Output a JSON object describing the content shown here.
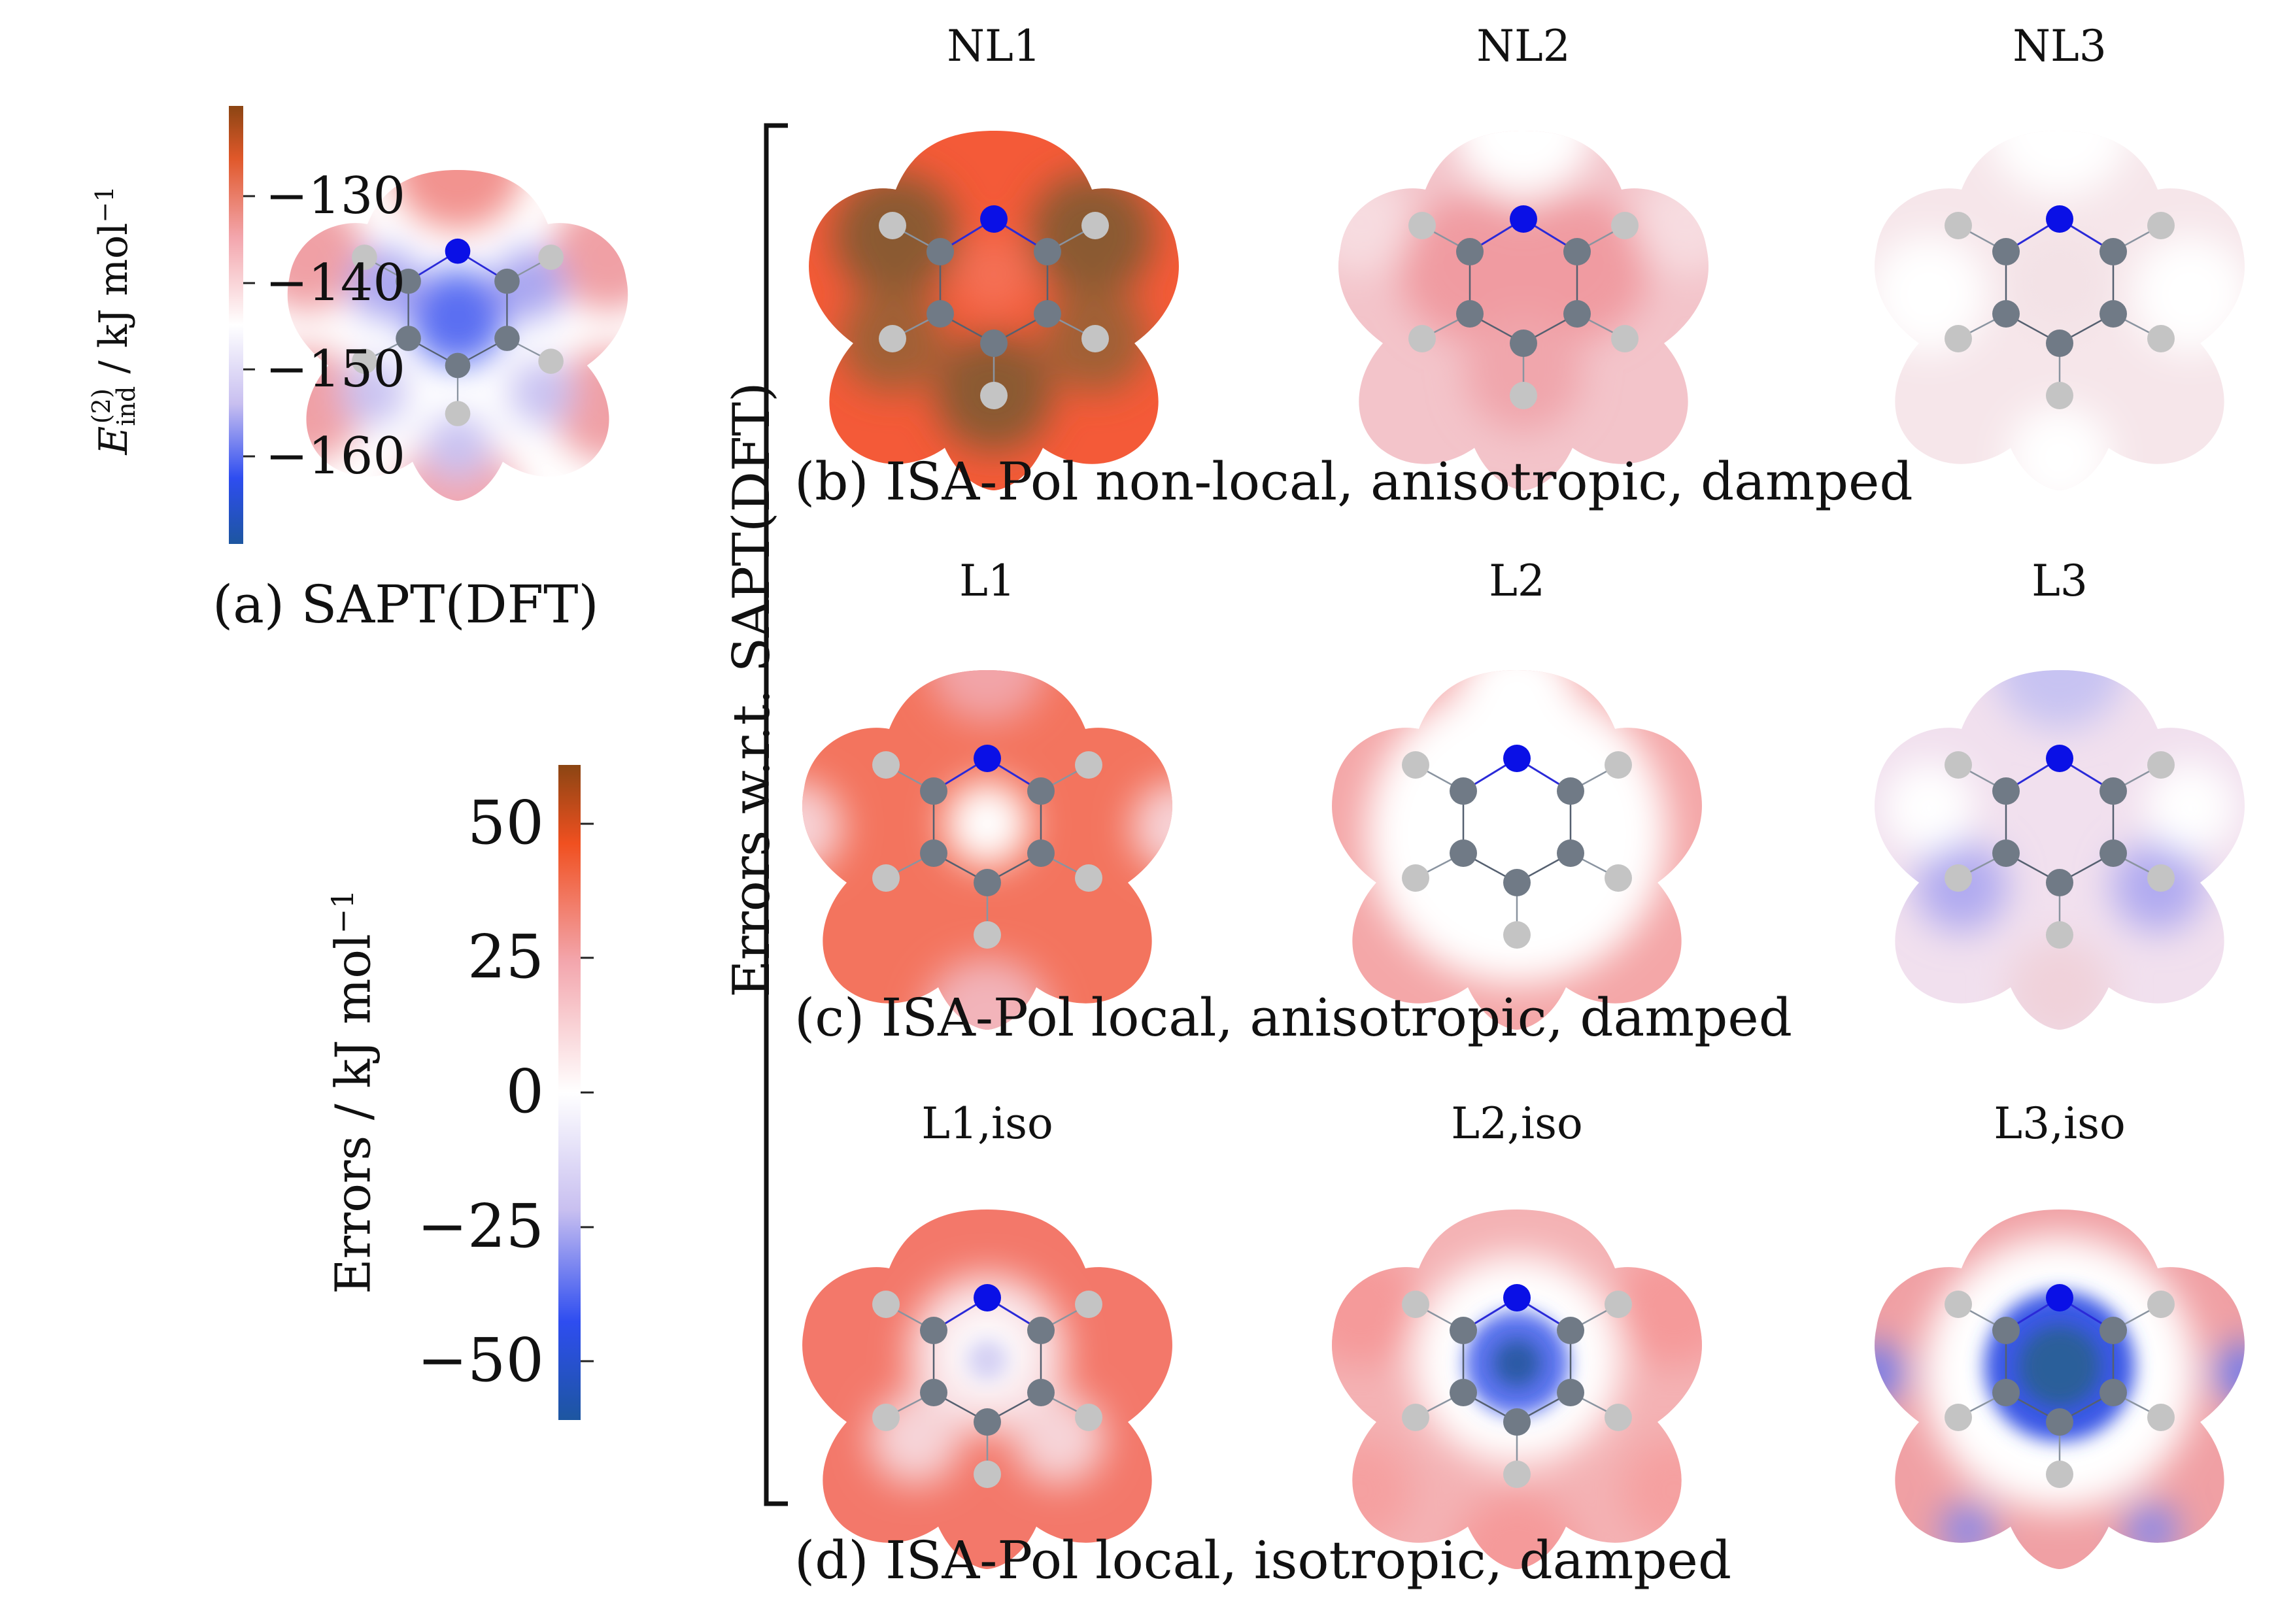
{
  "panel_a": {
    "caption": "(a) SAPT(DFT)",
    "colorbar_label_symbol": "E",
    "colorbar_label_sup": "(2)",
    "colorbar_label_sub": "ind",
    "colorbar_label_unit": " / kJ mol",
    "colorbar_label_exp": "−1",
    "ticks": [
      "−130",
      "−140",
      "−150",
      "−160"
    ]
  },
  "error_bar": {
    "label": "Errors / kJ mol",
    "label_exp": "−1",
    "ticks": [
      "50",
      "25",
      "0",
      "−25",
      "−50"
    ]
  },
  "bracket_label": "Errors w.r.t. SAPT(DFT)",
  "rows": [
    {
      "caption": "(b) ISA-Pol non-local, anisotropic, damped",
      "titles": [
        "NL1",
        "NL2",
        "NL3"
      ]
    },
    {
      "caption": "(c) ISA-Pol local, anisotropic, damped",
      "titles": [
        "L1",
        "L2",
        "L3"
      ]
    },
    {
      "caption": "(d) ISA-Pol local, isotropic, damped",
      "titles": [
        "L1,iso",
        "L2,iso",
        "L3,iso"
      ]
    }
  ],
  "colors": {
    "red": "#f4573a",
    "pink": "#f2b5bd",
    "white": "#ffffff",
    "lavender": "#dcd4f2",
    "blue": "#2e4df0",
    "navy": "#1d56a0",
    "brown": "#8b4513",
    "carbon": "#707a86",
    "hydrogen": "#c4c4c4",
    "nitrogen": "#0a10e6"
  }
}
